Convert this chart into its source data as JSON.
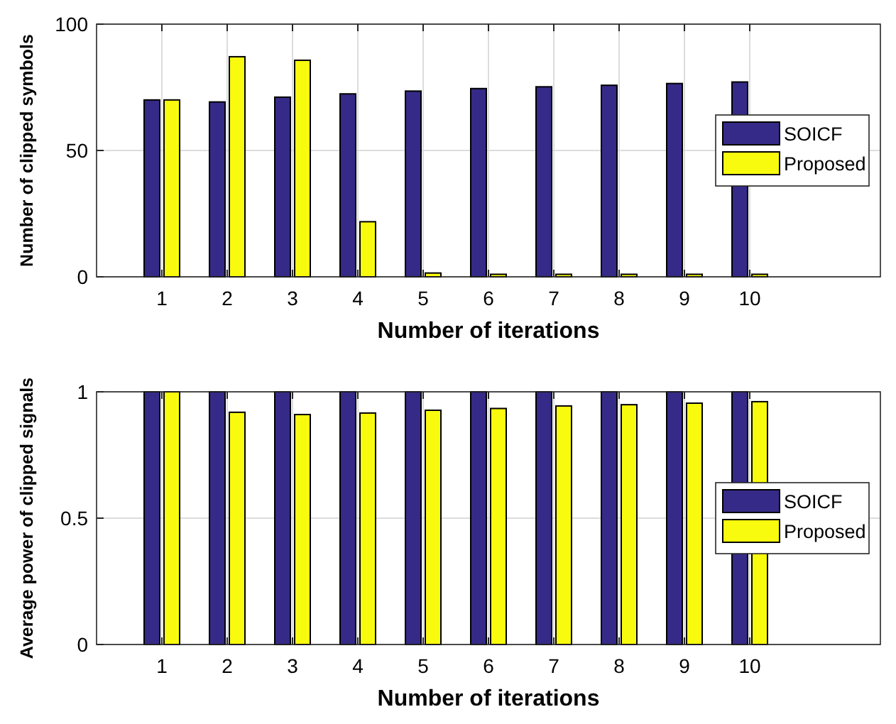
{
  "chart_data": [
    {
      "type": "bar",
      "xlabel": "Number of iterations",
      "ylabel": "Number of clipped symbols",
      "x": [
        1,
        2,
        3,
        4,
        5,
        6,
        7,
        8,
        9,
        10
      ],
      "xlim": [
        0,
        12
      ],
      "xticks": [
        1,
        2,
        3,
        4,
        5,
        6,
        7,
        8,
        9,
        10
      ],
      "ylim": [
        0,
        100
      ],
      "yticks": [
        0,
        50,
        100
      ],
      "grid": true,
      "legend": "right",
      "series": [
        {
          "name": "SOICF",
          "color": "#352a87",
          "values": [
            70,
            69.2,
            71.1,
            72.4,
            73.5,
            74.5,
            75.2,
            75.8,
            76.5,
            77.1
          ]
        },
        {
          "name": "Proposed",
          "color": "#f9fb0e",
          "values": [
            70,
            87.1,
            85.7,
            21.8,
            1.5,
            1,
            1,
            1,
            1,
            1
          ]
        }
      ]
    },
    {
      "type": "bar",
      "xlabel": "Number of iterations",
      "ylabel": "Average power of clipped signals",
      "x": [
        1,
        2,
        3,
        4,
        5,
        6,
        7,
        8,
        9,
        10
      ],
      "xlim": [
        0,
        12
      ],
      "xticks": [
        1,
        2,
        3,
        4,
        5,
        6,
        7,
        8,
        9,
        10
      ],
      "ylim": [
        0,
        1
      ],
      "yticks": [
        0,
        0.5,
        1
      ],
      "grid": true,
      "legend": "right",
      "series": [
        {
          "name": "SOICF",
          "color": "#352a87",
          "values": [
            1,
            1,
            1,
            1,
            1,
            1,
            1,
            1,
            1,
            1
          ]
        },
        {
          "name": "Proposed",
          "color": "#f9fb0e",
          "values": [
            1,
            0.919,
            0.91,
            0.916,
            0.927,
            0.934,
            0.944,
            0.949,
            0.955,
            0.961
          ]
        }
      ]
    }
  ]
}
